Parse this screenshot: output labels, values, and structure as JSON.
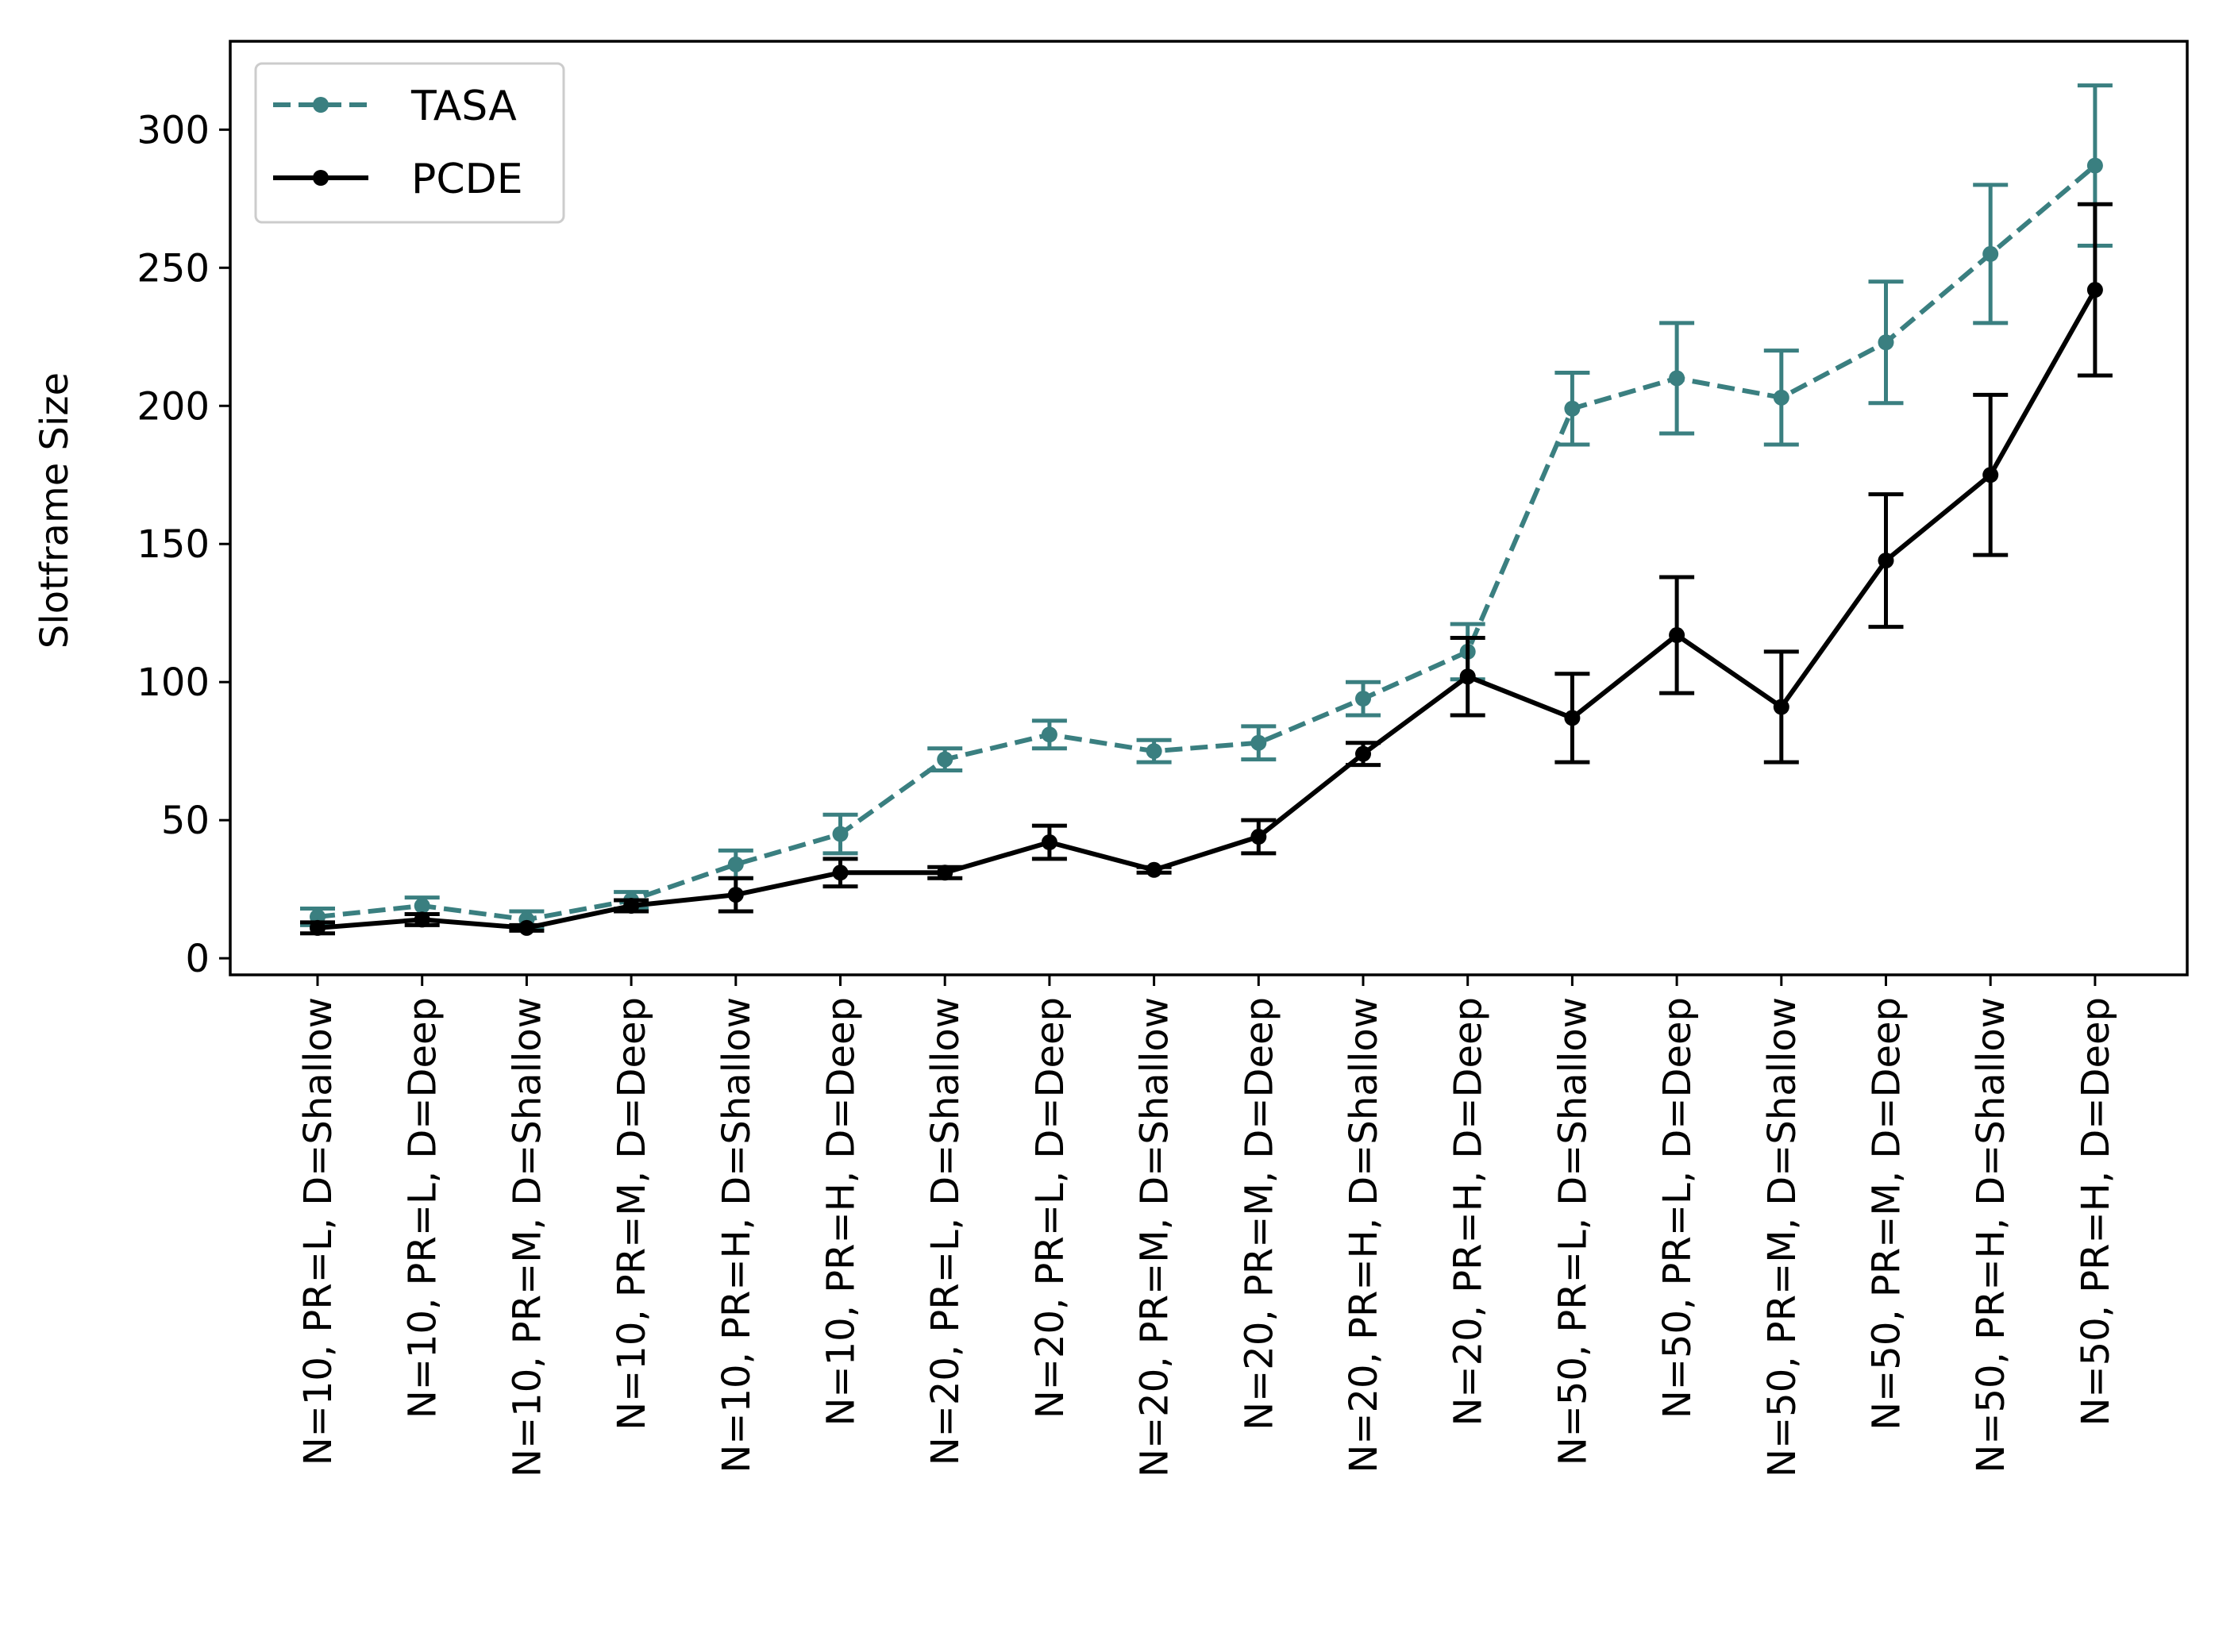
{
  "chart_data": {
    "type": "line",
    "title": "",
    "xlabel": "",
    "ylabel": "Slotframe Size",
    "ylim": [
      -6,
      332
    ],
    "yticks": [
      0,
      50,
      100,
      150,
      200,
      250,
      300
    ],
    "grid": false,
    "legend_position": "top-left",
    "categories": [
      "N=10, PR=L, D=Shallow",
      "N=10, PR=L, D=Deep",
      "N=10, PR=M, D=Shallow",
      "N=10, PR=M, D=Deep",
      "N=10, PR=H, D=Shallow",
      "N=10, PR=H, D=Deep",
      "N=20, PR=L, D=Shallow",
      "N=20, PR=L, D=Deep",
      "N=20, PR=M, D=Shallow",
      "N=20, PR=M, D=Deep",
      "N=20, PR=H, D=Shallow",
      "N=20, PR=H, D=Deep",
      "N=50, PR=L, D=Shallow",
      "N=50, PR=L, D=Deep",
      "N=50, PR=M, D=Shallow",
      "N=50, PR=M, D=Deep",
      "N=50, PR=H, D=Shallow",
      "N=50, PR=H, D=Deep"
    ],
    "series": [
      {
        "name": "TASA",
        "color": "#3a7f80",
        "style": "dashed",
        "values": [
          15,
          19,
          14,
          21,
          34,
          45,
          72,
          81,
          75,
          78,
          94,
          111,
          199,
          210,
          203,
          223,
          255,
          287
        ],
        "error": [
          3,
          3,
          3,
          3,
          5,
          7,
          4,
          5,
          4,
          6,
          6,
          10,
          13,
          20,
          17,
          22,
          25,
          29
        ]
      },
      {
        "name": "PCDE",
        "color": "#000000",
        "style": "solid",
        "values": [
          11,
          14,
          11,
          19,
          23,
          31,
          31,
          42,
          32,
          44,
          74,
          102,
          87,
          117,
          91,
          144,
          175,
          242
        ],
        "error": [
          2,
          2,
          1,
          2,
          6,
          5,
          2,
          6,
          1,
          6,
          4,
          14,
          16,
          21,
          20,
          24,
          29,
          31
        ]
      }
    ]
  }
}
